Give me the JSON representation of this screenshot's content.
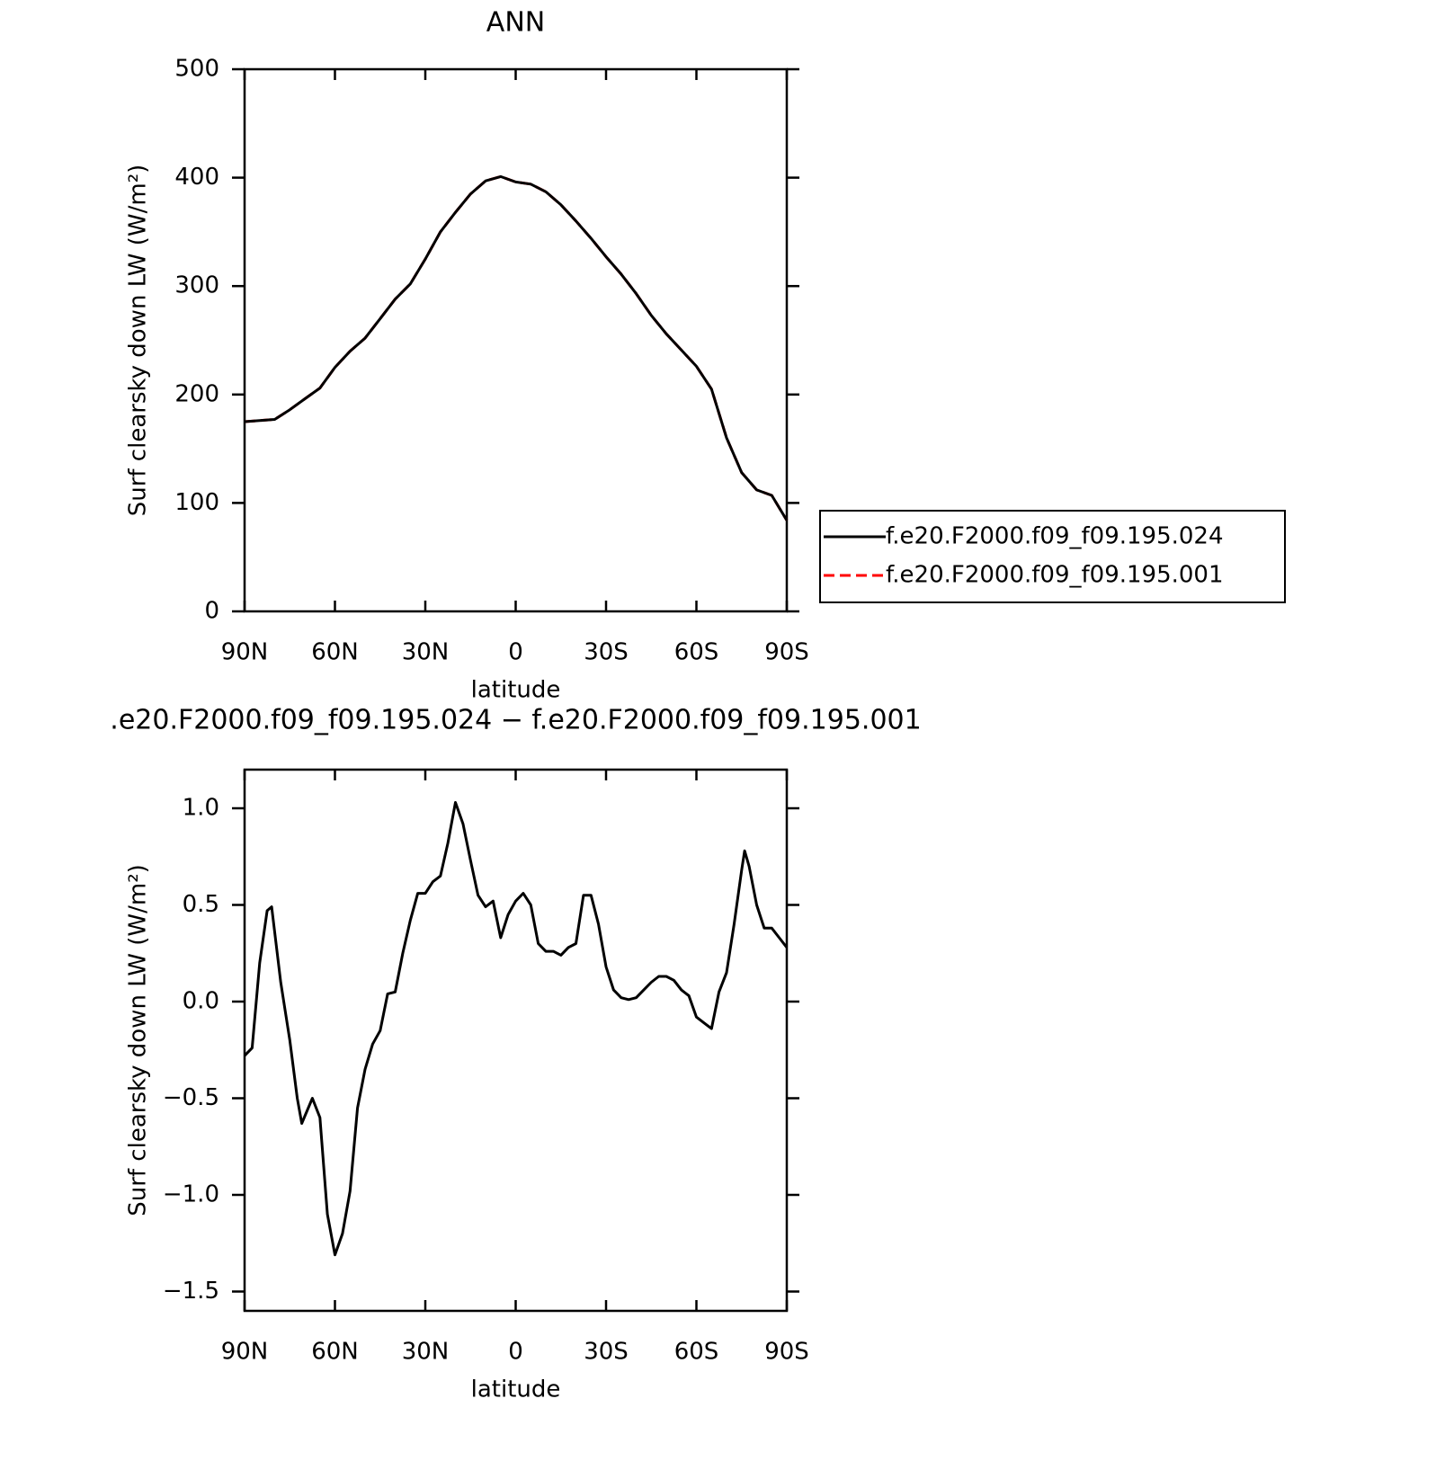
{
  "chart_data": [
    {
      "type": "line",
      "title": "ANN",
      "xlabel": "latitude",
      "ylabel": "Surf clearsky down LW (W/m²)",
      "x": [
        90,
        85,
        80,
        75,
        70,
        65,
        60,
        55,
        50,
        45,
        40,
        35,
        30,
        25,
        20,
        15,
        10,
        5,
        0,
        -5,
        -10,
        -15,
        -20,
        -25,
        -30,
        -35,
        -40,
        -45,
        -50,
        -55,
        -60,
        -65,
        -70,
        -75,
        -80,
        -85,
        -90
      ],
      "series": [
        {
          "name": "f.e20.F2000.f09_f09.195.001",
          "color": "#ff0000",
          "dashed": true,
          "values": [
            175,
            176,
            177,
            186,
            196,
            206,
            225,
            240,
            252,
            270,
            288,
            302,
            325,
            350,
            368,
            385,
            397,
            401,
            396,
            394,
            387,
            375,
            360,
            344,
            327,
            311,
            293,
            273,
            256,
            241,
            226,
            205,
            160,
            128,
            112,
            107,
            84
          ]
        },
        {
          "name": "f.e20.F2000.f09_f09.195.024",
          "color": "#000000",
          "dashed": false,
          "values": [
            175,
            176,
            177,
            186,
            196,
            206,
            225,
            240,
            252,
            270,
            288,
            302,
            325,
            350,
            368,
            385,
            397,
            401,
            396,
            394,
            387,
            375,
            360,
            344,
            327,
            311,
            293,
            273,
            256,
            241,
            226,
            205,
            160,
            128,
            112,
            107,
            84
          ]
        }
      ],
      "xlim": [
        90,
        -90
      ],
      "xticks": [
        {
          "value": 90,
          "label": "90N"
        },
        {
          "value": 60,
          "label": "60N"
        },
        {
          "value": 30,
          "label": "30N"
        },
        0,
        {
          "value": -30,
          "label": "30S"
        },
        {
          "value": -60,
          "label": "60S"
        },
        {
          "value": -90,
          "label": "90S"
        }
      ],
      "ylim": [
        0,
        500
      ],
      "yticks": [
        0,
        100,
        200,
        300,
        400,
        500
      ],
      "legend": "right"
    },
    {
      "type": "line",
      "title": ".e20.F2000.f09_f09.195.024 − f.e20.F2000.f09_f09.195.001",
      "xlabel": "latitude",
      "ylabel": "Surf clearsky down LW (W/m²)",
      "x": [
        90,
        87.5,
        85,
        82.5,
        81,
        78,
        75,
        72.5,
        71,
        67.5,
        65,
        62.5,
        60,
        57.5,
        55,
        52.5,
        50,
        47.5,
        45,
        42.5,
        40,
        37.5,
        35,
        32.5,
        30,
        27.5,
        25,
        22.5,
        20,
        17.5,
        15,
        12.5,
        10,
        7.5,
        5,
        2.5,
        0,
        -2.5,
        -5,
        -7.5,
        -10,
        -12.5,
        -15,
        -17.5,
        -20,
        -22.5,
        -25,
        -27.5,
        -30,
        -32.5,
        -35,
        -37.5,
        -40,
        -42.5,
        -45,
        -47.5,
        -50,
        -52.5,
        -55,
        -57.5,
        -60,
        -62.5,
        -65,
        -67.5,
        -70,
        -72.5,
        -75,
        -76,
        -77.5,
        -80,
        -82.5,
        -85,
        -87.5,
        -90
      ],
      "series": [
        {
          "color": "#000000",
          "dashed": false,
          "values": [
            -0.28,
            -0.24,
            0.2,
            0.47,
            0.49,
            0.1,
            -0.2,
            -0.5,
            -0.63,
            -0.5,
            -0.6,
            -1.1,
            -1.31,
            -1.2,
            -0.98,
            -0.55,
            -0.35,
            -0.22,
            -0.15,
            0.04,
            0.05,
            0.25,
            0.42,
            0.56,
            0.56,
            0.62,
            0.65,
            0.82,
            1.03,
            0.92,
            0.73,
            0.55,
            0.49,
            0.52,
            0.33,
            0.45,
            0.52,
            0.56,
            0.5,
            0.3,
            0.26,
            0.26,
            0.24,
            0.28,
            0.3,
            0.55,
            0.55,
            0.4,
            0.18,
            0.06,
            0.02,
            0.01,
            0.02,
            0.06,
            0.1,
            0.13,
            0.13,
            0.11,
            0.06,
            0.03,
            -0.08,
            -0.11,
            -0.14,
            0.05,
            0.15,
            0.4,
            0.68,
            0.78,
            0.7,
            0.5,
            0.38,
            0.38,
            0.33,
            0.28
          ]
        }
      ],
      "xlim": [
        90,
        -90
      ],
      "xticks": [
        {
          "value": 90,
          "label": "90N"
        },
        {
          "value": 60,
          "label": "60N"
        },
        {
          "value": 30,
          "label": "30N"
        },
        0,
        {
          "value": -30,
          "label": "30S"
        },
        {
          "value": -60,
          "label": "60S"
        },
        {
          "value": -90,
          "label": "90S"
        }
      ],
      "ylim": [
        -1.6,
        1.2
      ],
      "yticks": [
        {
          "value": -1.5,
          "label": "−1.5"
        },
        {
          "value": -1,
          "label": "−1.0"
        },
        {
          "value": -0.5,
          "label": "−0.5"
        },
        {
          "value": 0,
          "label": "0.0"
        },
        0.5,
        {
          "value": 1,
          "label": "1.0"
        }
      ]
    }
  ]
}
